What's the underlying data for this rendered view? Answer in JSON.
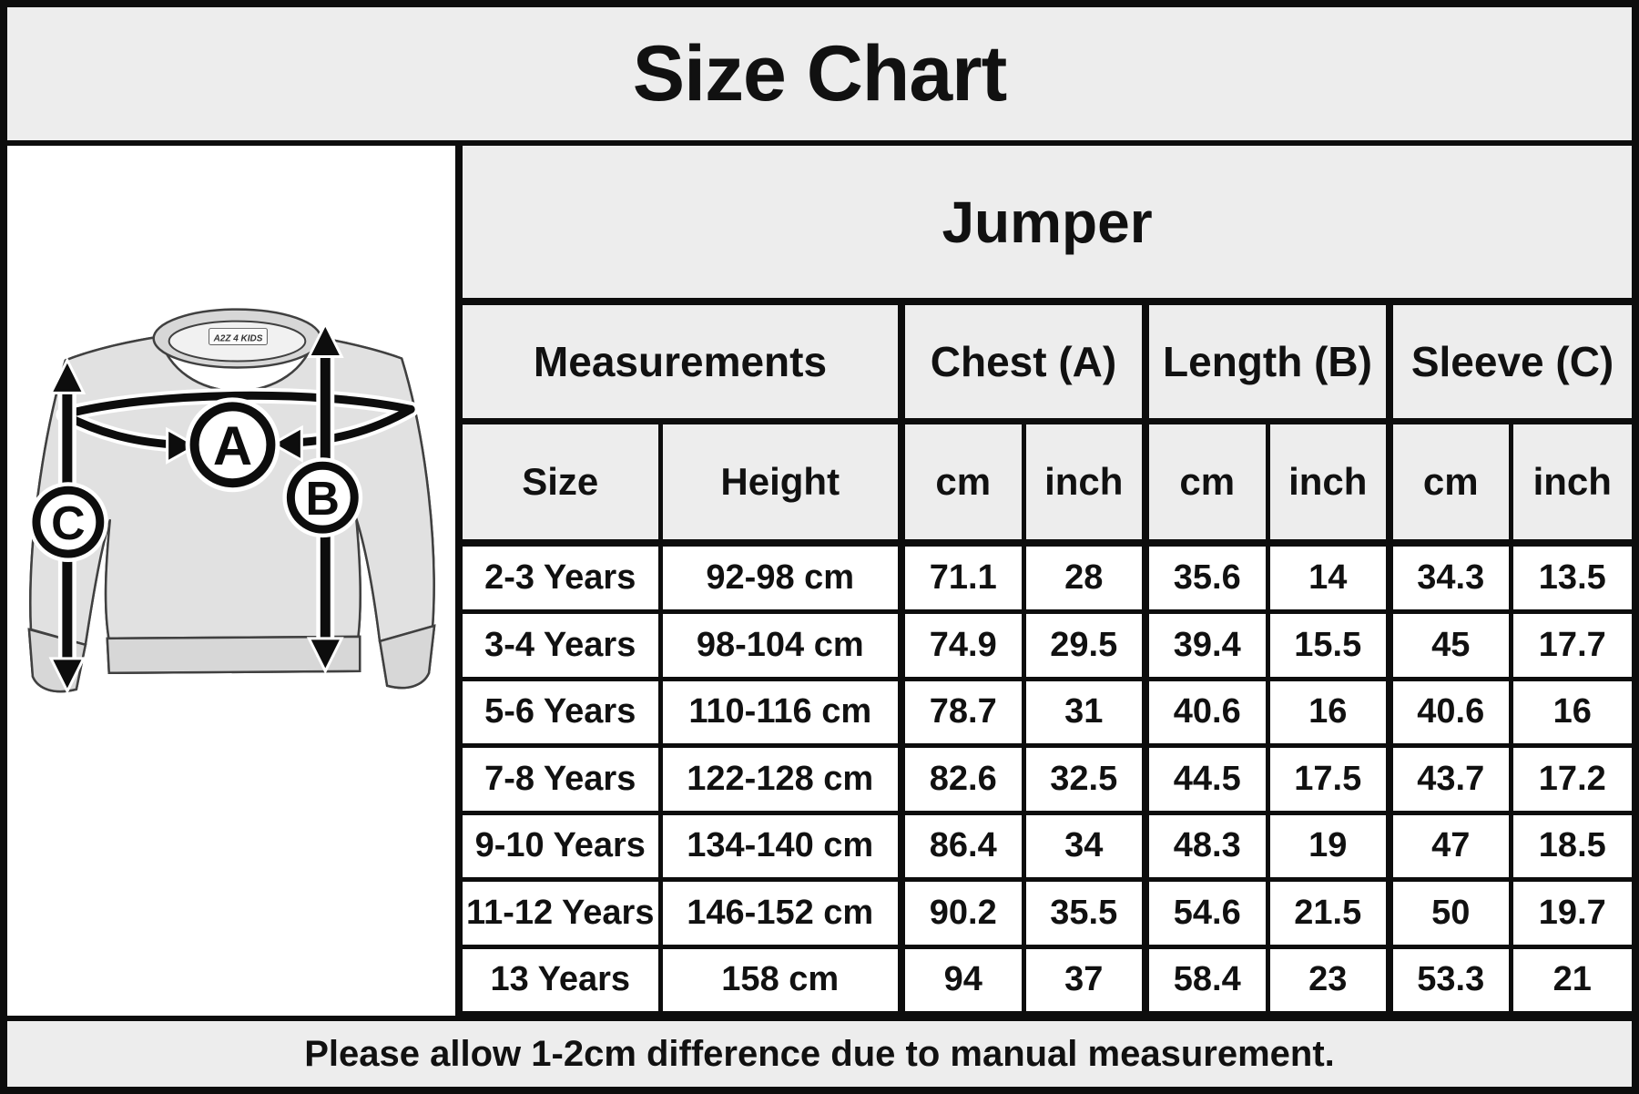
{
  "chart_data": {
    "type": "table",
    "title": "Size Chart",
    "product": "Jumper",
    "group_headers": [
      "Measurements",
      "Chest (A)",
      "Length (B)",
      "Sleeve (C)"
    ],
    "sub_headers": [
      "Size",
      "Height",
      "cm",
      "inch",
      "cm",
      "inch",
      "cm",
      "inch"
    ],
    "rows": [
      [
        "2-3 Years",
        "92-98 cm",
        "71.1",
        "28",
        "35.6",
        "14",
        "34.3",
        "13.5"
      ],
      [
        "3-4 Years",
        "98-104 cm",
        "74.9",
        "29.5",
        "39.4",
        "15.5",
        "45",
        "17.7"
      ],
      [
        "5-6 Years",
        "110-116 cm",
        "78.7",
        "31",
        "40.6",
        "16",
        "40.6",
        "16"
      ],
      [
        "7-8 Years",
        "122-128 cm",
        "82.6",
        "32.5",
        "44.5",
        "17.5",
        "43.7",
        "17.2"
      ],
      [
        "9-10 Years",
        "134-140 cm",
        "86.4",
        "34",
        "48.3",
        "19",
        "47",
        "18.5"
      ],
      [
        "11-12 Years",
        "146-152 cm",
        "90.2",
        "35.5",
        "54.6",
        "21.5",
        "50",
        "19.7"
      ],
      [
        "13 Years",
        "158 cm",
        "94",
        "37",
        "58.4",
        "23",
        "53.3",
        "21"
      ]
    ],
    "note": "Please allow 1-2cm difference due to manual measurement."
  },
  "diagram": {
    "marker_a": "A",
    "marker_b": "B",
    "marker_c": "C",
    "brand_label": "A2Z 4 KIDS"
  },
  "colors": {
    "header_bg": "#ededed",
    "cell_bg": "#ffffff",
    "grid_line": "#0d0d0d",
    "text": "#111111",
    "garment_fill": "#e1e1e1",
    "garment_trim": "#d7d7d7",
    "garment_stroke": "#404040"
  }
}
